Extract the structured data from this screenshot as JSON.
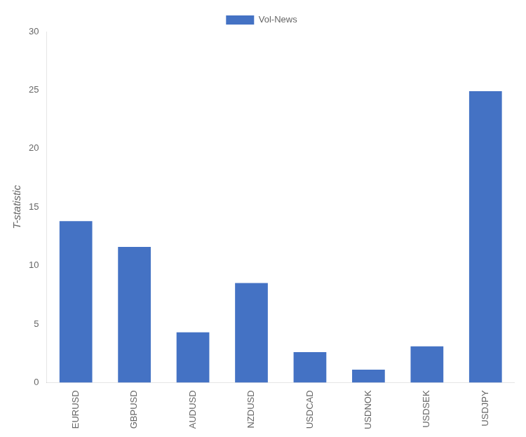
{
  "chart_data": {
    "type": "bar",
    "categories": [
      "EURUSD",
      "GBPUSD",
      "AUDUSD",
      "NZDUSD",
      "USDCAD",
      "USDNOK",
      "USDSEK",
      "USDJPY"
    ],
    "series": [
      {
        "name": "Vol-News",
        "color": "#4472C4",
        "values": [
          13.8,
          11.6,
          4.3,
          8.5,
          2.6,
          1.1,
          3.1,
          24.9
        ]
      }
    ],
    "ylabel": "T-statistic",
    "ylim": [
      0,
      30
    ],
    "yticks": [
      0,
      5,
      10,
      15,
      20,
      25,
      30
    ],
    "grid": false,
    "legend": "top"
  }
}
